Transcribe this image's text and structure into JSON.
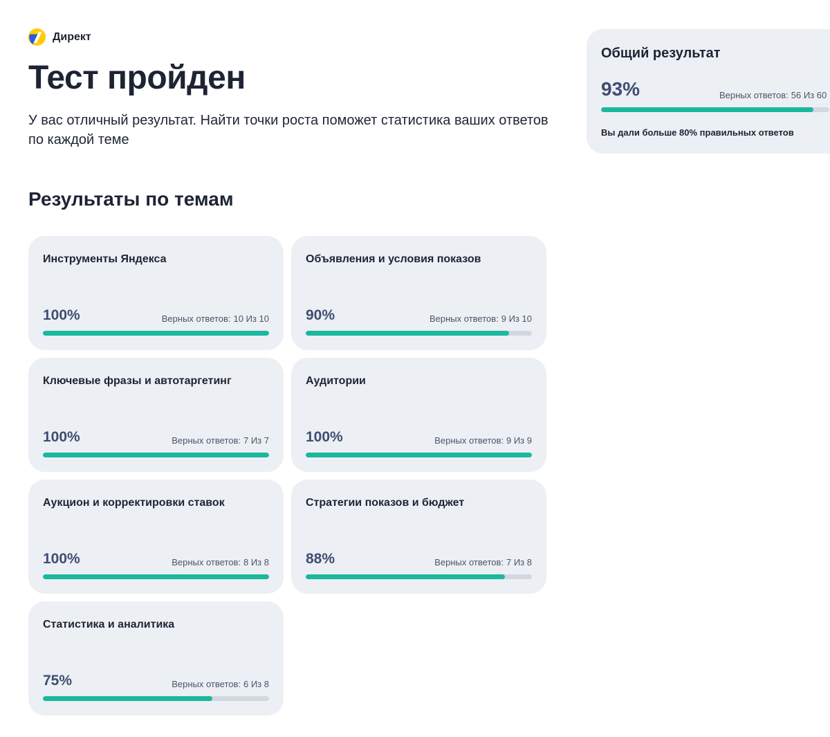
{
  "brand": {
    "name": "Директ",
    "logo_icon": "yandex-direct-logo-icon",
    "colors": {
      "accent_yellow": "#ffcc00",
      "accent_blue": "#2c5ad9"
    }
  },
  "header": {
    "title": "Тест пройден",
    "subtitle": "У вас отличный результат. Найти точки роста поможет статистика ваших ответов по каждой теме"
  },
  "section": {
    "title": "Результаты по темам"
  },
  "colors": {
    "progress_fill": "#1ab89c",
    "progress_track": "#d3d8e0",
    "card_background": "#eceff4",
    "percent_text": "#3f4d71"
  },
  "topics": [
    {
      "title": "Инструменты Яндекса",
      "percent_label": "100%",
      "count_prefix": "Верных ответов:",
      "count_text": "10 Из 10",
      "progress": 1.0
    },
    {
      "title": "Объявления и условия показов",
      "percent_label": "90%",
      "count_prefix": "Верных ответов:",
      "count_text": "9 Из 10",
      "progress": 0.9
    },
    {
      "title": "Ключевые фразы и автотаргетинг",
      "percent_label": "100%",
      "count_prefix": "Верных ответов:",
      "count_text": "7 Из 7",
      "progress": 1.0
    },
    {
      "title": "Аудитории",
      "percent_label": "100%",
      "count_prefix": "Верных ответов:",
      "count_text": "9 Из 9",
      "progress": 1.0
    },
    {
      "title": "Аукцион и корректировки ставок",
      "percent_label": "100%",
      "count_prefix": "Верных ответов:",
      "count_text": "8 Из 8",
      "progress": 1.0
    },
    {
      "title": "Стратегии показов и бюджет",
      "percent_label": "88%",
      "count_prefix": "Верных ответов:",
      "count_text": "7 Из 8",
      "progress": 0.88
    },
    {
      "title": "Статистика и аналитика",
      "percent_label": "75%",
      "count_prefix": "Верных ответов:",
      "count_text": "6 Из 8",
      "progress": 0.75
    }
  ],
  "summary": {
    "title": "Общий результат",
    "percent_label": "93%",
    "count_prefix": "Верных ответов:",
    "count_text": "56 Из 60",
    "progress": 0.93,
    "note": "Вы дали больше 80% правильных ответов"
  }
}
